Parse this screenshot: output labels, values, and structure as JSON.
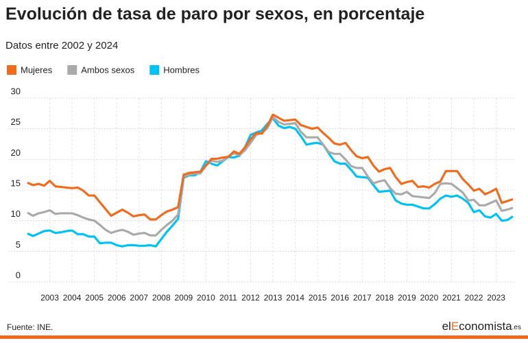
{
  "chart_data": {
    "type": "line",
    "title": "Evolución de tasa de paro por sexos, en porcentaje",
    "subtitle": "Datos entre 2002 y 2024",
    "source": "Fuente: INE.",
    "logo": [
      "el",
      "E",
      "conomista",
      ".es"
    ],
    "x": [
      2002,
      2002.25,
      2002.5,
      2002.75,
      2003,
      2003.25,
      2003.5,
      2003.75,
      2004,
      2004.25,
      2004.5,
      2004.75,
      2005,
      2005.25,
      2005.5,
      2005.75,
      2006,
      2006.25,
      2006.5,
      2006.75,
      2007,
      2007.25,
      2007.5,
      2007.75,
      2008,
      2008.25,
      2008.5,
      2008.75,
      2009,
      2009.25,
      2009.5,
      2009.75,
      2010,
      2010.25,
      2010.5,
      2010.75,
      2011,
      2011.25,
      2011.5,
      2011.75,
      2012,
      2012.25,
      2012.5,
      2012.75,
      2013,
      2013.25,
      2013.5,
      2013.75,
      2014,
      2014.25,
      2014.5,
      2014.75,
      2015,
      2015.25,
      2015.5,
      2015.75,
      2016,
      2016.25,
      2016.5,
      2016.75,
      2017,
      2017.25,
      2017.5,
      2017.75,
      2018,
      2018.25,
      2018.5,
      2018.75,
      2019,
      2019.25,
      2019.5,
      2019.75,
      2020,
      2020.25,
      2020.5,
      2020.75,
      2021,
      2021.25,
      2021.5,
      2021.75,
      2022,
      2022.25,
      2022.5,
      2022.75,
      2023,
      2023.25,
      2023.5,
      2023.75
    ],
    "series": [
      {
        "name": "Mujeres",
        "color": "#f26b1d",
        "values": [
          16.2,
          15.8,
          16.0,
          15.7,
          16.5,
          15.6,
          15.5,
          15.4,
          15.3,
          15.4,
          14.9,
          14.1,
          14.1,
          13.0,
          11.9,
          10.8,
          11.3,
          11.8,
          11.3,
          10.7,
          10.9,
          11.0,
          10.2,
          10.2,
          10.9,
          11.5,
          11.8,
          12.2,
          17.5,
          17.8,
          17.9,
          18.0,
          19.0,
          20.1,
          20.1,
          20.3,
          20.4,
          21.3,
          20.9,
          22.0,
          23.3,
          24.3,
          24.2,
          25.5,
          27.3,
          26.8,
          26.3,
          26.4,
          26.5,
          25.6,
          25.3,
          25.0,
          25.2,
          24.3,
          23.5,
          22.6,
          22.4,
          22.7,
          21.5,
          20.5,
          20.2,
          20.4,
          19.0,
          18.0,
          18.4,
          18.6,
          17.1,
          16.0,
          16.3,
          16.5,
          15.5,
          15.6,
          15.4,
          16.0,
          16.4,
          18.1,
          18.1,
          18.1,
          16.8,
          15.9,
          14.9,
          15.2,
          14.3,
          14.7,
          15.2,
          12.9,
          13.2,
          13.5
        ]
      },
      {
        "name": "Ambos sexos",
        "color": "#aaaaaa",
        "values": [
          11.3,
          10.8,
          11.2,
          11.4,
          11.7,
          11.1,
          11.2,
          11.2,
          11.2,
          10.9,
          10.5,
          10.2,
          10.0,
          9.3,
          8.5,
          8.0,
          8.3,
          8.5,
          8.2,
          7.7,
          7.9,
          8.0,
          7.6,
          7.6,
          8.5,
          9.3,
          10.0,
          11.0,
          17.2,
          17.5,
          17.7,
          17.7,
          19.0,
          19.8,
          19.6,
          19.8,
          20.5,
          21.0,
          20.7,
          21.5,
          22.7,
          24.0,
          24.3,
          25.1,
          26.9,
          26.1,
          25.7,
          25.8,
          25.9,
          24.5,
          23.6,
          23.6,
          23.6,
          22.4,
          21.2,
          20.9,
          20.9,
          20.0,
          18.9,
          18.6,
          18.6,
          17.2,
          16.1,
          16.4,
          16.6,
          15.3,
          14.4,
          14.3,
          14.7,
          14.0,
          13.9,
          13.8,
          13.7,
          14.5,
          16.0,
          16.1,
          16.0,
          15.3,
          14.6,
          13.3,
          13.4,
          12.5,
          12.5,
          12.9,
          13.3,
          11.6,
          11.8,
          12.1
        ]
      },
      {
        "name": "Hombres",
        "color": "#00c3f5",
        "values": [
          7.9,
          7.5,
          7.9,
          8.3,
          8.4,
          8.0,
          8.1,
          8.3,
          8.4,
          7.8,
          7.8,
          7.4,
          7.4,
          6.3,
          6.4,
          6.4,
          6.0,
          5.8,
          6.0,
          6.0,
          5.9,
          5.9,
          6.0,
          5.8,
          7.0,
          8.2,
          9.2,
          10.3,
          17.0,
          17.4,
          17.4,
          18.0,
          19.7,
          19.3,
          19.0,
          19.7,
          20.4,
          20.3,
          20.6,
          22.0,
          24.0,
          24.4,
          24.7,
          25.8,
          26.7,
          25.5,
          25.1,
          25.3,
          25.0,
          23.8,
          22.4,
          22.6,
          22.7,
          22.4,
          21.0,
          19.7,
          19.3,
          19.3,
          18.3,
          17.2,
          17.1,
          17.0,
          15.8,
          14.7,
          14.8,
          14.9,
          13.3,
          12.8,
          12.6,
          12.6,
          12.3,
          12.0,
          12.0,
          12.7,
          13.6,
          14.1,
          13.9,
          14.1,
          13.6,
          12.9,
          11.4,
          11.7,
          10.7,
          10.5,
          11.1,
          10.0,
          10.1,
          10.7
        ]
      }
    ],
    "xlim": [
      2002,
      2023.75
    ],
    "xticks": [
      2003,
      2004,
      2005,
      2006,
      2007,
      2008,
      2009,
      2010,
      2011,
      2012,
      2013,
      2014,
      2015,
      2016,
      2017,
      2018,
      2019,
      2020,
      2021,
      2022,
      2023
    ],
    "ylim": [
      0,
      30
    ],
    "yticks": [
      0,
      5,
      10,
      15,
      20,
      25,
      30
    ],
    "grid": true
  }
}
